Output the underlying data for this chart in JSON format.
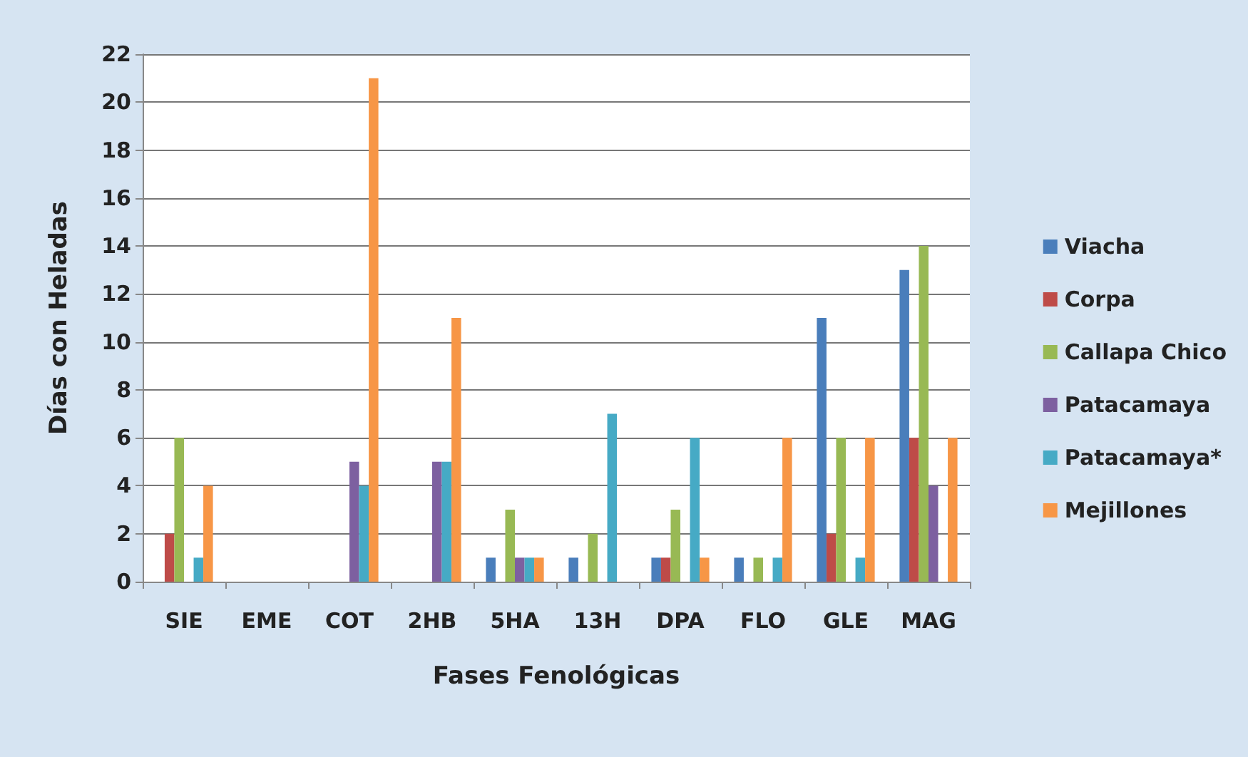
{
  "chart_data": {
    "type": "bar",
    "xlabel": "Fases Fenológicas",
    "ylabel": "Días con Heladas",
    "categories": [
      "SIE",
      "EME",
      "COT",
      "2HB",
      "5HA",
      "13H",
      "DPA",
      "FLO",
      "GLE",
      "MAG"
    ],
    "series": [
      {
        "name": "Viacha",
        "color": "#4a7ebb",
        "values": [
          0,
          0,
          0,
          0,
          1,
          1,
          1,
          1,
          11,
          13
        ]
      },
      {
        "name": "Corpa",
        "color": "#be4b48",
        "values": [
          2,
          0,
          0,
          0,
          0,
          0,
          1,
          0,
          2,
          6
        ]
      },
      {
        "name": "Callapa Chico",
        "color": "#98b954",
        "values": [
          6,
          0,
          0,
          0,
          3,
          2,
          3,
          1,
          6,
          14
        ]
      },
      {
        "name": "Patacamaya",
        "color": "#7d60a0",
        "values": [
          0,
          0,
          5,
          5,
          1,
          0,
          0,
          0,
          0,
          4
        ]
      },
      {
        "name": "Patacamaya*",
        "color": "#46aac5",
        "values": [
          1,
          0,
          4,
          5,
          1,
          7,
          6,
          1,
          1,
          0
        ]
      },
      {
        "name": "Mejillones",
        "color": "#f79646",
        "values": [
          4,
          0,
          21,
          11,
          1,
          0,
          1,
          6,
          6,
          6
        ]
      }
    ],
    "ylim": [
      0,
      22
    ],
    "yticks": [
      0,
      2,
      4,
      6,
      8,
      10,
      12,
      14,
      16,
      18,
      20,
      22
    ],
    "grid": "y",
    "legend": "right"
  }
}
